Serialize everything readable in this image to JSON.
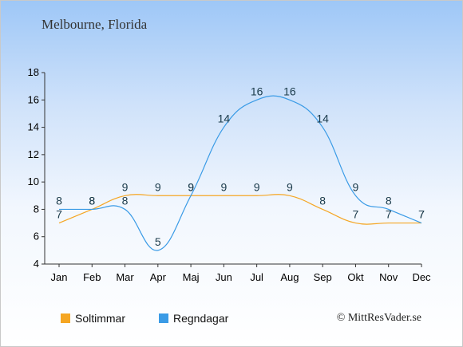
{
  "title": "Melbourne, Florida",
  "credit": "© MittResVader.se",
  "chart_data": {
    "type": "line",
    "categories": [
      "Jan",
      "Feb",
      "Mar",
      "Apr",
      "Maj",
      "Jun",
      "Jul",
      "Aug",
      "Sep",
      "Okt",
      "Nov",
      "Dec"
    ],
    "ylim": [
      4,
      18
    ],
    "yticks": [
      4,
      6,
      8,
      10,
      12,
      14,
      16,
      18
    ],
    "grid": false,
    "legend_placement": "bottom-left",
    "series": [
      {
        "name": "Soltimmar",
        "color": "#f5a623",
        "values": [
          7,
          8,
          9,
          9,
          9,
          9,
          9,
          9,
          8,
          7,
          7,
          7
        ]
      },
      {
        "name": "Regndagar",
        "color": "#3a9be6",
        "values": [
          8,
          8,
          8,
          5,
          9,
          14,
          16,
          16,
          14,
          9,
          8,
          7
        ]
      }
    ]
  }
}
